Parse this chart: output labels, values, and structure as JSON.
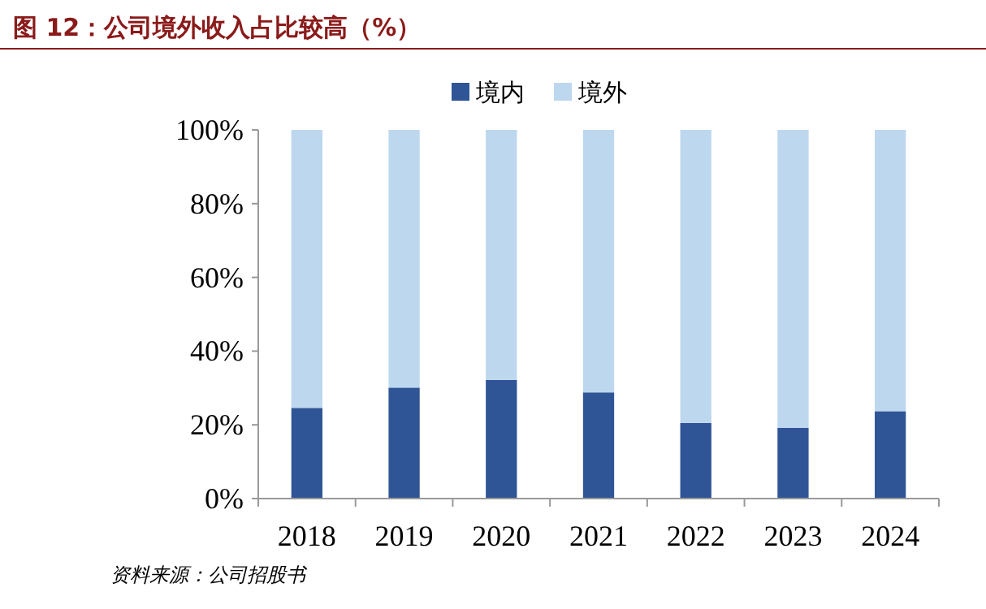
{
  "chart_data": {
    "type": "bar",
    "title": "图 12：公司境外收入占比较高（%）",
    "categories": [
      "2018",
      "2019",
      "2020",
      "2021",
      "2022",
      "2023",
      "2024"
    ],
    "series": [
      {
        "name": "境内",
        "color": "#2f5597",
        "values": [
          24.6,
          30.1,
          32.2,
          28.8,
          20.5,
          19.2,
          23.7
        ]
      },
      {
        "name": "境外",
        "color": "#bdd7ee",
        "values": [
          75.4,
          69.9,
          67.8,
          71.2,
          79.5,
          80.8,
          76.3
        ]
      }
    ],
    "stacked": true,
    "ylim": [
      0,
      100
    ],
    "yticks": [
      {
        "value": 0,
        "label": "0%"
      },
      {
        "value": 20,
        "label": "20%"
      },
      {
        "value": 40,
        "label": "40%"
      },
      {
        "value": 60,
        "label": "60%"
      },
      {
        "value": 80,
        "label": "80%"
      },
      {
        "value": 100,
        "label": "100%"
      }
    ],
    "legend": "top",
    "annotations": [
      "资料来源：公司招股书"
    ]
  }
}
